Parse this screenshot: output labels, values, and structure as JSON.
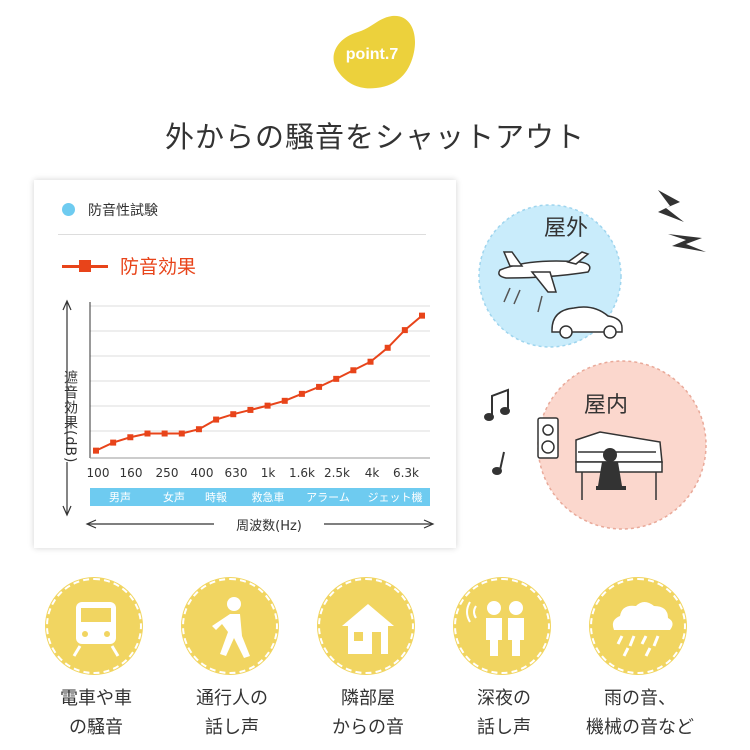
{
  "badge": {
    "label": "point.7",
    "color": "#ecd13c"
  },
  "headline": "外からの騒音をシャットアウト",
  "chart": {
    "legend_title": "防音性試験",
    "series_label": "防音効果",
    "y_label": "遮音効果(dB)",
    "x_label": "周波数(Hz)",
    "ticks": [
      "100",
      "160",
      "250",
      "400",
      "630",
      "1k",
      "1.6k",
      "2.5k",
      "4k",
      "6.3k"
    ],
    "sound_sources": [
      "男声",
      "女声",
      "時報",
      "救急車",
      "アラーム",
      "ジェット機"
    ],
    "colors": {
      "series": "#e8441a",
      "bar": "#6ecbf0"
    }
  },
  "chart_data": {
    "type": "line",
    "x_label": "周波数(Hz)",
    "y_label": "遮音効果(dB)",
    "series": [
      {
        "name": "防音効果",
        "y": [
          1.0,
          2.5,
          3.5,
          4.2,
          4.2,
          4.2,
          5.0,
          6.8,
          7.8,
          8.6,
          9.4,
          10.3,
          11.6,
          12.9,
          14.4,
          16.0,
          17.6,
          20.2,
          23.5,
          26.2
        ]
      }
    ],
    "ylim": [
      0,
      28
    ],
    "grid": true,
    "legend": "top-left"
  },
  "scene": {
    "outdoor_label": "屋外",
    "indoor_label": "屋内",
    "colors": {
      "outdoor": "#c9ecfb",
      "indoor": "#fbd7cd"
    }
  },
  "noise_sources": [
    {
      "icon": "train-icon",
      "line1": "電車や車",
      "line2": "の騒音"
    },
    {
      "icon": "walking-person-icon",
      "line1": "通行人の",
      "line2": "話し声"
    },
    {
      "icon": "house-icon",
      "line1": "隣部屋",
      "line2": "からの音"
    },
    {
      "icon": "people-talking-icon",
      "line1": "深夜の",
      "line2": "話し声"
    },
    {
      "icon": "rain-cloud-icon",
      "line1": "雨の音、",
      "line2": "機械の音など"
    }
  ]
}
